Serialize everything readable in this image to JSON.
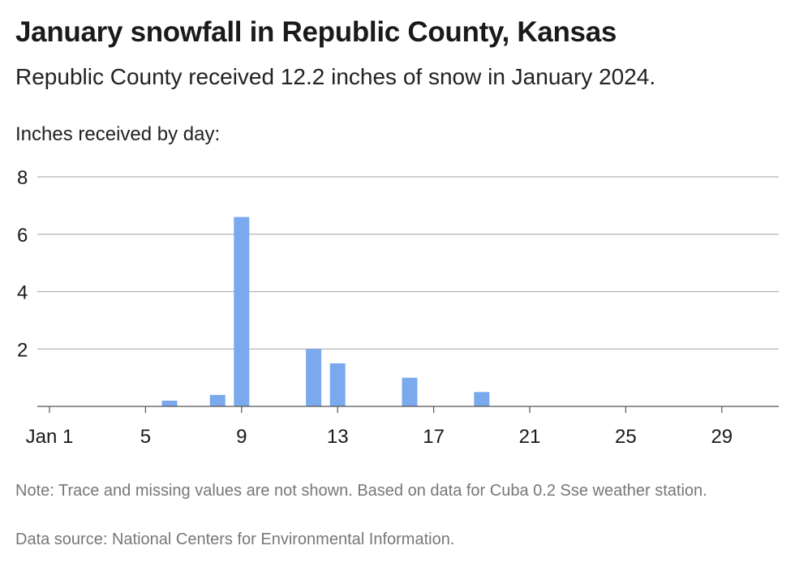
{
  "header": {
    "title": "January snowfall in Republic County, Kansas",
    "subtitle": "Republic County received 12.2 inches of snow in January 2024."
  },
  "footer": {
    "note": "Note: Trace and missing values are not shown. Based on data for Cuba 0.2 Sse weather station.",
    "source": "Data source: National Centers for Environmental Information."
  },
  "colors": {
    "bar": "#7aaaed",
    "gridline": "#b5b5b5",
    "axis": "#555555"
  },
  "chart_data": {
    "type": "bar",
    "title": "January snowfall in Republic County, Kansas",
    "subtitle": "Republic County received 12.2 inches of snow in January 2024.",
    "ylabel": "Inches received by day:",
    "xlabel": "",
    "x_domain": [
      1,
      31
    ],
    "ylim": [
      0,
      8
    ],
    "y_ticks": [
      2,
      4,
      6,
      8
    ],
    "x_ticks": [
      {
        "day": 1,
        "label": "Jan 1"
      },
      {
        "day": 5,
        "label": "5"
      },
      {
        "day": 9,
        "label": "9"
      },
      {
        "day": 13,
        "label": "13"
      },
      {
        "day": 17,
        "label": "17"
      },
      {
        "day": 21,
        "label": "21"
      },
      {
        "day": 25,
        "label": "25"
      },
      {
        "day": 29,
        "label": "29"
      }
    ],
    "grid": true,
    "categories": [
      "Jan 6",
      "Jan 8",
      "Jan 9",
      "Jan 12",
      "Jan 13",
      "Jan 16",
      "Jan 19"
    ],
    "days": [
      6,
      8,
      9,
      12,
      13,
      16,
      19
    ],
    "values": [
      0.2,
      0.4,
      6.6,
      2.0,
      1.5,
      1.0,
      0.5
    ]
  }
}
